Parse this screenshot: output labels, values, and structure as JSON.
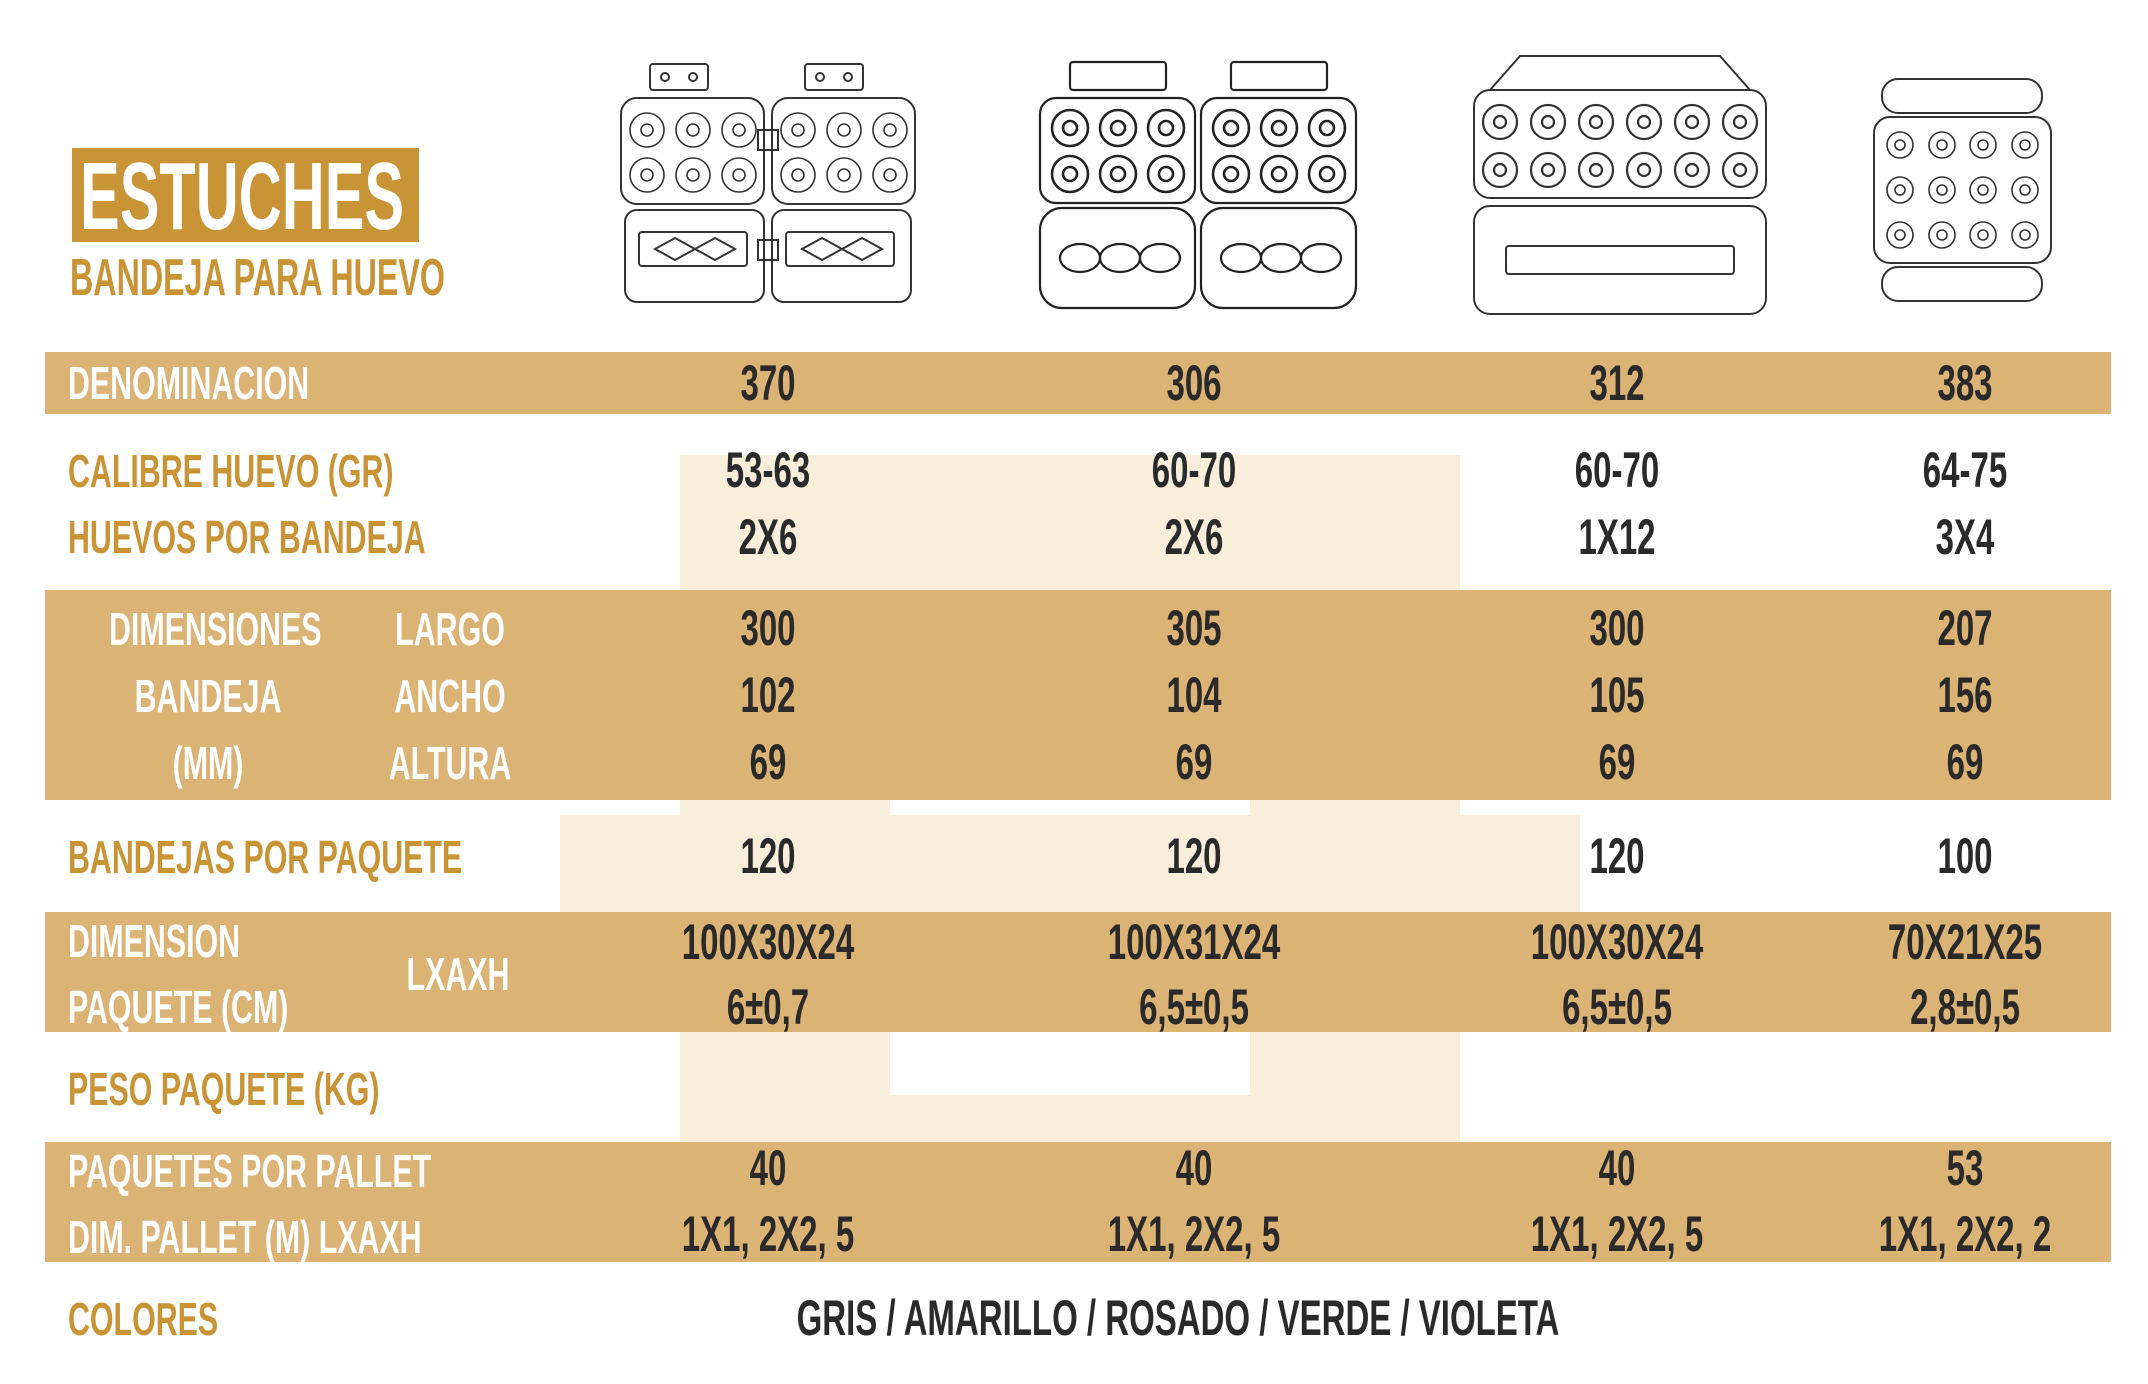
{
  "header": {
    "title": "ESTUCHES",
    "subtitle": "BANDEJA PARA HUEVO"
  },
  "colors": {
    "accent": "#dbb374",
    "brand": "#c99436",
    "text_dark": "#2a2a2a"
  },
  "products": [
    {
      "denominacion": "370",
      "calibre": "53-63",
      "huevos": "2X6",
      "largo": "300",
      "ancho": "102",
      "altura": "69",
      "bandejas_paquete": "120",
      "dim_paquete": "100X30X24",
      "peso_paquete": "6±0,7",
      "paquetes_pallet": "40",
      "dim_pallet": "1X1, 2X2, 5"
    },
    {
      "denominacion": "306",
      "calibre": "60-70",
      "huevos": "2X6",
      "largo": "305",
      "ancho": "104",
      "altura": "69",
      "bandejas_paquete": "120",
      "dim_paquete": "100X31X24",
      "peso_paquete": "6,5±0,5",
      "paquetes_pallet": "40",
      "dim_pallet": "1X1, 2X2, 5"
    },
    {
      "denominacion": "312",
      "calibre": "60-70",
      "huevos": "1X12",
      "largo": "300",
      "ancho": "105",
      "altura": "69",
      "bandejas_paquete": "120",
      "dim_paquete": "100X30X24",
      "peso_paquete": "6,5±0,5",
      "paquetes_pallet": "40",
      "dim_pallet": "1X1, 2X2, 5"
    },
    {
      "denominacion": "383",
      "calibre": "64-75",
      "huevos": "3X4",
      "largo": "207",
      "ancho": "156",
      "altura": "69",
      "bandejas_paquete": "100",
      "dim_paquete": "70X21X25",
      "peso_paquete": "2,8±0,5",
      "paquetes_pallet": "53",
      "dim_pallet": "1X1, 2X2, 2"
    }
  ],
  "labels": {
    "denominacion": "DENOMINACION",
    "calibre": "CALIBRE HUEVO (GR)",
    "huevos": "HUEVOS POR BANDEJA",
    "dimensiones": "DIMENSIONES",
    "bandeja": "BANDEJA",
    "mm": "(MM)",
    "largo": "LARGO",
    "ancho": "ANCHO",
    "altura": "ALTURA",
    "bandejas_paquete": "BANDEJAS POR PAQUETE",
    "dimension": "DIMENSION",
    "paquete_cm": "PAQUETE (CM)",
    "lxaxh": "LXAXH",
    "peso_paquete": "PESO PAQUETE (KG)",
    "paquetes_pallet": "PAQUETES POR PALLET",
    "dim_pallet": "DIM. PALLET (M) LXAXH",
    "colores": "COLORES"
  },
  "colores_value": "GRIS / AMARILLO / ROSADO / VERDE / VIOLETA",
  "tray_images": [
    {
      "icon": "egg-tray-370-icon"
    },
    {
      "icon": "egg-tray-306-icon"
    },
    {
      "icon": "egg-tray-312-icon"
    },
    {
      "icon": "egg-tray-383-icon"
    }
  ]
}
